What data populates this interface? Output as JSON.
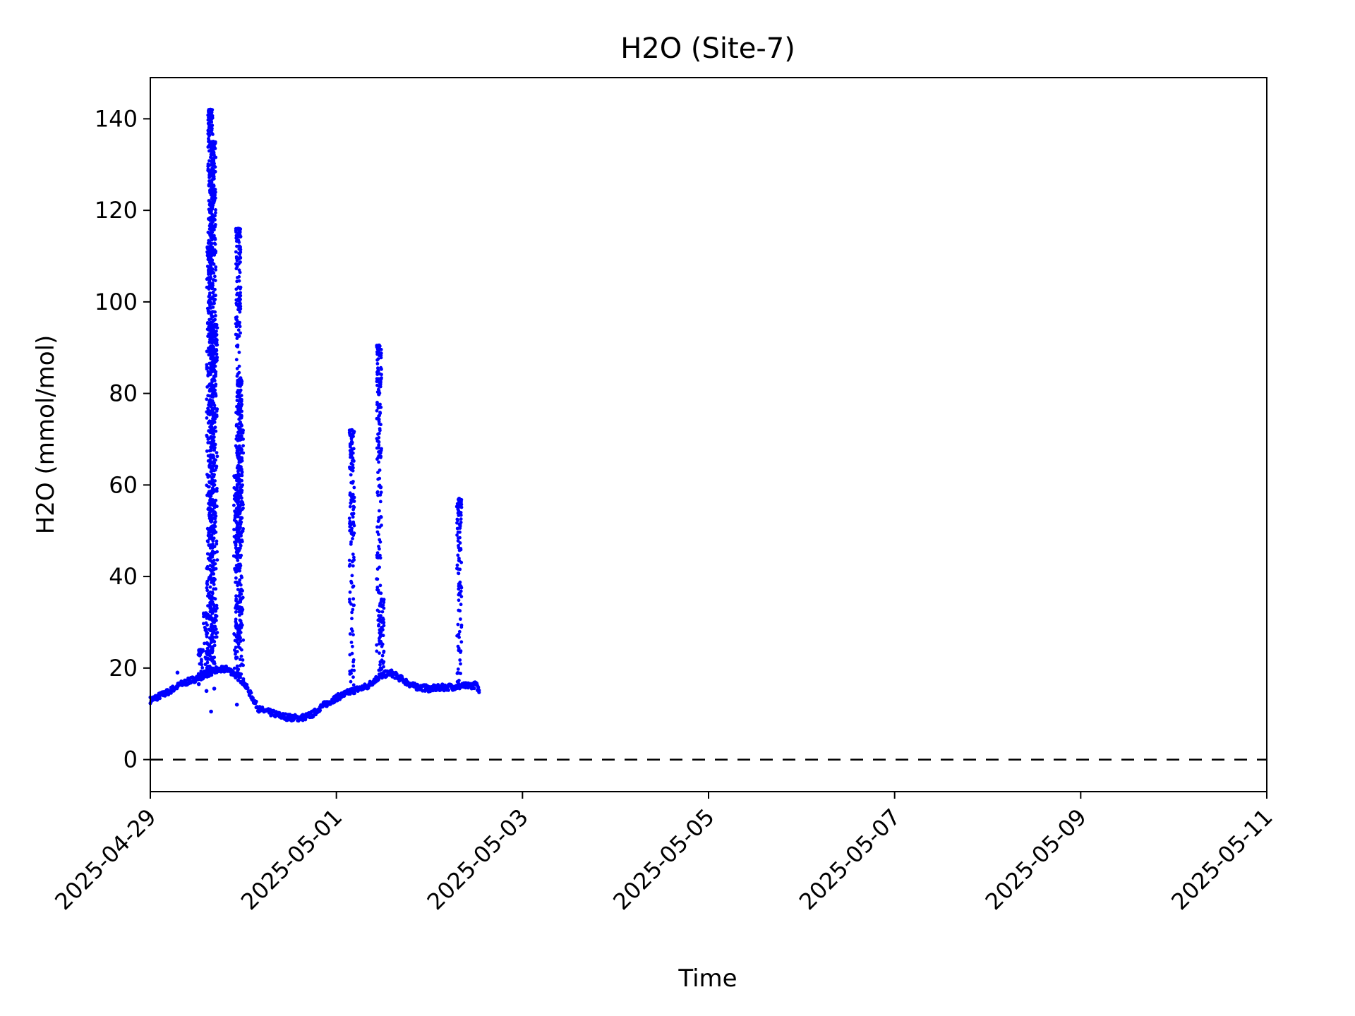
{
  "chart_data": {
    "type": "scatter",
    "title": "H2O (Site-7)",
    "xlabel": "Time",
    "ylabel": "H2O (mmol/mol)",
    "xlim": [
      "2025-04-29T00:00",
      "2025-05-11T00:00"
    ],
    "ylim": [
      -7,
      149
    ],
    "x_ticks": [
      "2025-04-29",
      "2025-05-01",
      "2025-05-03",
      "2025-05-05",
      "2025-05-07",
      "2025-05-09",
      "2025-05-11"
    ],
    "y_ticks": [
      0,
      20,
      40,
      60,
      80,
      100,
      120,
      140
    ],
    "grid": false,
    "marker_color": "#0000ff",
    "reference_line": {
      "y": 0,
      "style": "dashed",
      "color": "#000000"
    },
    "baseline": {
      "x": [
        "2025-04-29T00:00",
        "2025-04-29T04:00",
        "2025-04-29T08:00",
        "2025-04-29T12:00",
        "2025-04-29T14:00",
        "2025-04-29T16:00",
        "2025-04-29T18:00",
        "2025-04-29T20:00",
        "2025-04-29T22:00",
        "2025-04-30T00:00",
        "2025-04-30T02:00",
        "2025-04-30T04:00",
        "2025-04-30T06:00",
        "2025-04-30T08:00",
        "2025-04-30T10:00",
        "2025-04-30T12:00",
        "2025-04-30T14:00",
        "2025-04-30T16:00",
        "2025-04-30T18:00",
        "2025-04-30T20:00",
        "2025-04-30T22:00",
        "2025-05-01T00:00",
        "2025-05-01T04:00",
        "2025-05-01T08:00",
        "2025-05-01T10:00",
        "2025-05-01T12:00",
        "2025-05-01T14:00",
        "2025-05-01T16:00",
        "2025-05-01T20:00",
        "2025-05-02T00:00",
        "2025-05-02T04:00",
        "2025-05-02T08:00",
        "2025-05-02T12:00",
        "2025-05-02T13:00"
      ],
      "y": [
        13,
        14.5,
        16.5,
        17.8,
        18.5,
        19.2,
        19.6,
        19.8,
        18.5,
        17,
        14,
        11,
        10.5,
        10,
        9.5,
        9.2,
        9.1,
        9.3,
        10,
        11.5,
        12.5,
        13.5,
        15,
        16,
        17.5,
        18.5,
        19,
        18,
        16,
        15.5,
        15.8,
        16,
        16.3,
        15
      ]
    },
    "spikes": [
      {
        "x": "2025-04-29T13:00",
        "peak": 24
      },
      {
        "x": "2025-04-29T14:20",
        "peak": 32
      },
      {
        "x": "2025-04-29T15:10",
        "peak": 112
      },
      {
        "x": "2025-04-29T15:30",
        "peak": 142
      },
      {
        "x": "2025-04-29T15:50",
        "peak": 128
      },
      {
        "x": "2025-04-29T16:15",
        "peak": 135
      },
      {
        "x": "2025-04-29T16:40",
        "peak": 95
      },
      {
        "x": "2025-04-29T22:10",
        "peak": 62
      },
      {
        "x": "2025-04-29T22:40",
        "peak": 116
      },
      {
        "x": "2025-04-29T23:00",
        "peak": 83
      },
      {
        "x": "2025-04-29T23:20",
        "peak": 72
      },
      {
        "x": "2025-05-01T04:00",
        "peak": 72
      },
      {
        "x": "2025-05-01T11:00",
        "peak": 90.5
      },
      {
        "x": "2025-05-01T11:40",
        "peak": 35
      },
      {
        "x": "2025-05-02T07:40",
        "peak": 57
      }
    ],
    "outliers": [
      {
        "x": "2025-04-29T15:40",
        "y": 10.5
      },
      {
        "x": "2025-04-29T14:30",
        "y": 15
      },
      {
        "x": "2025-04-29T16:30",
        "y": 15.5
      },
      {
        "x": "2025-04-29T22:20",
        "y": 12
      },
      {
        "x": "2025-04-29T07:00",
        "y": 19
      },
      {
        "x": "2025-04-29T12:30",
        "y": 16.5
      },
      {
        "x": "2025-05-01T11:10",
        "y": 77
      },
      {
        "x": "2025-05-01T11:20",
        "y": 67
      },
      {
        "x": "2025-05-01T11:25",
        "y": 59.5
      },
      {
        "x": "2025-05-01T11:30",
        "y": 53
      },
      {
        "x": "2025-04-29T22:50",
        "y": 95
      }
    ]
  }
}
